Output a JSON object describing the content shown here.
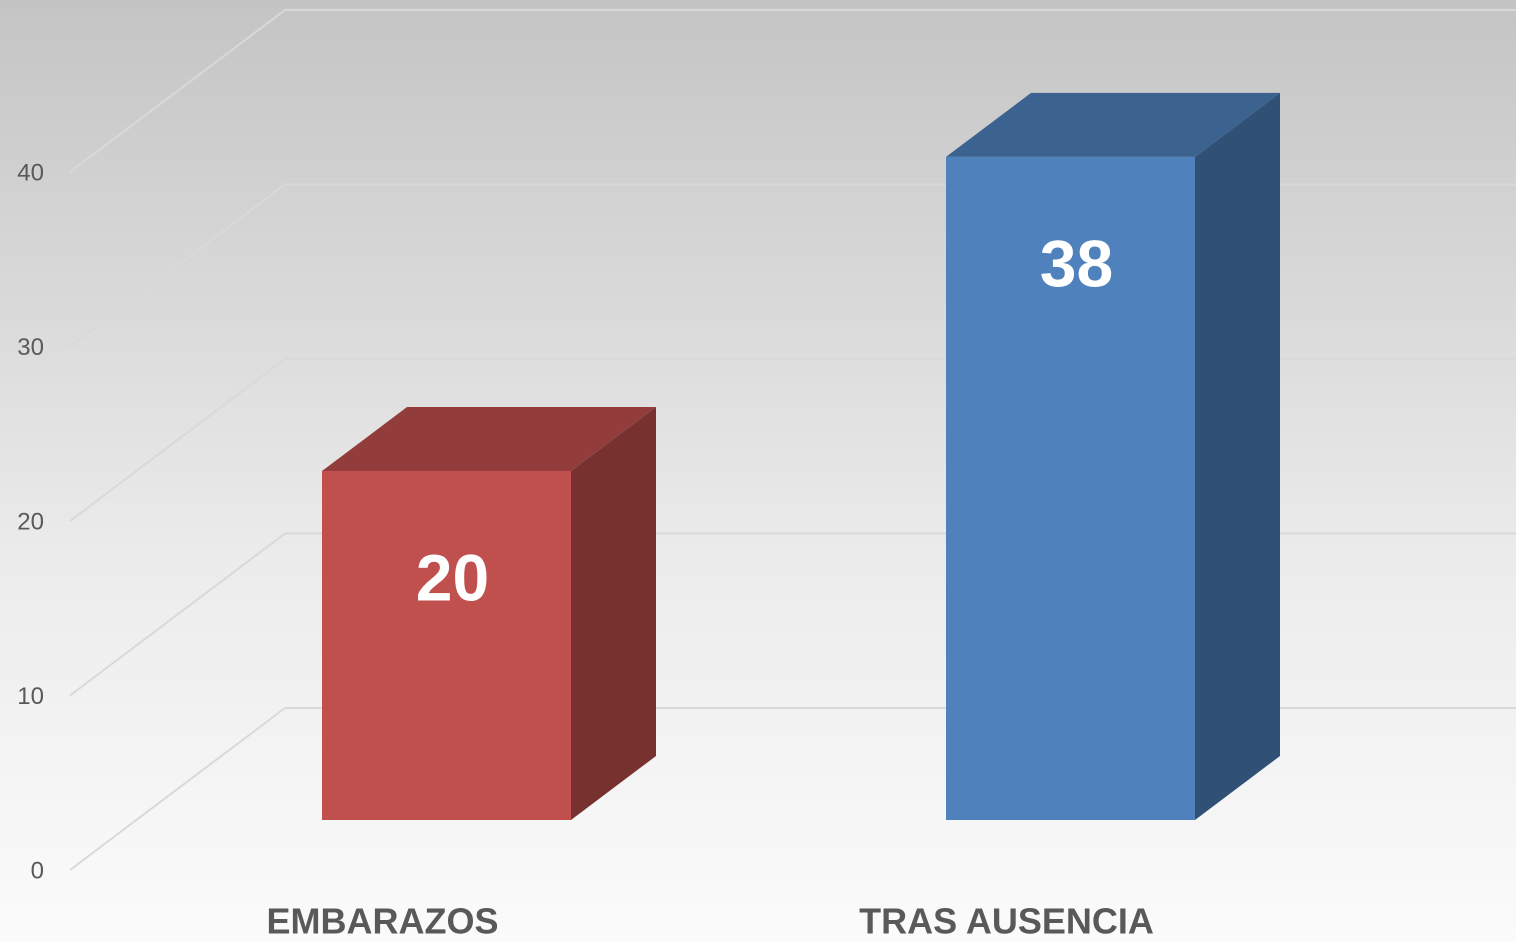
{
  "chart_data": {
    "type": "bar3d",
    "categories": [
      "EMBARAZOS",
      "TRAS AUSENCIA"
    ],
    "values": [
      20,
      38
    ],
    "colors": [
      "#c0504d",
      "#4f81bd"
    ],
    "ylim": [
      0,
      40
    ],
    "yticks": [
      0,
      10,
      20,
      30,
      40
    ],
    "grid": true
  }
}
